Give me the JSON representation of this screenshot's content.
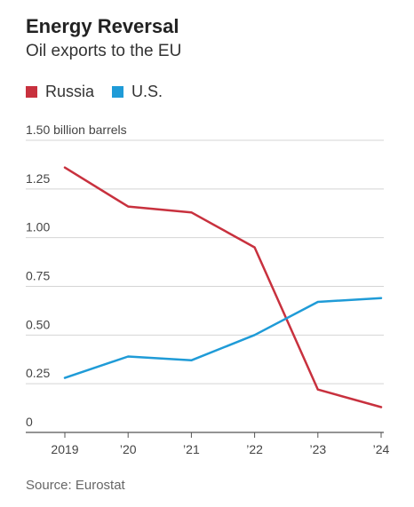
{
  "chart_data": {
    "type": "line",
    "title": "Energy Reversal",
    "subtitle": "Oil exports to the EU",
    "ylabel_unit": "billion barrels",
    "x": [
      "2019",
      "’20",
      "’21",
      "’22",
      "’23",
      "’24"
    ],
    "series": [
      {
        "name": "Russia",
        "color": "#c8313e",
        "values": [
          1.36,
          1.16,
          1.13,
          0.95,
          0.22,
          0.13
        ]
      },
      {
        "name": "U.S.",
        "color": "#1f9bd7",
        "values": [
          0.28,
          0.39,
          0.37,
          0.5,
          0.67,
          0.69
        ]
      }
    ],
    "y_ticks": [
      {
        "value": 1.5,
        "label": "1.50"
      },
      {
        "value": 1.25,
        "label": "1.25"
      },
      {
        "value": 1.0,
        "label": "1.00"
      },
      {
        "value": 0.75,
        "label": "0.75"
      },
      {
        "value": 0.5,
        "label": "0.50"
      },
      {
        "value": 0.25,
        "label": "0.25"
      },
      {
        "value": 0,
        "label": "0"
      }
    ],
    "ylim": [
      0,
      1.5
    ],
    "grid": true,
    "legend_placement": "top-left"
  },
  "source": "Source: Eurostat"
}
